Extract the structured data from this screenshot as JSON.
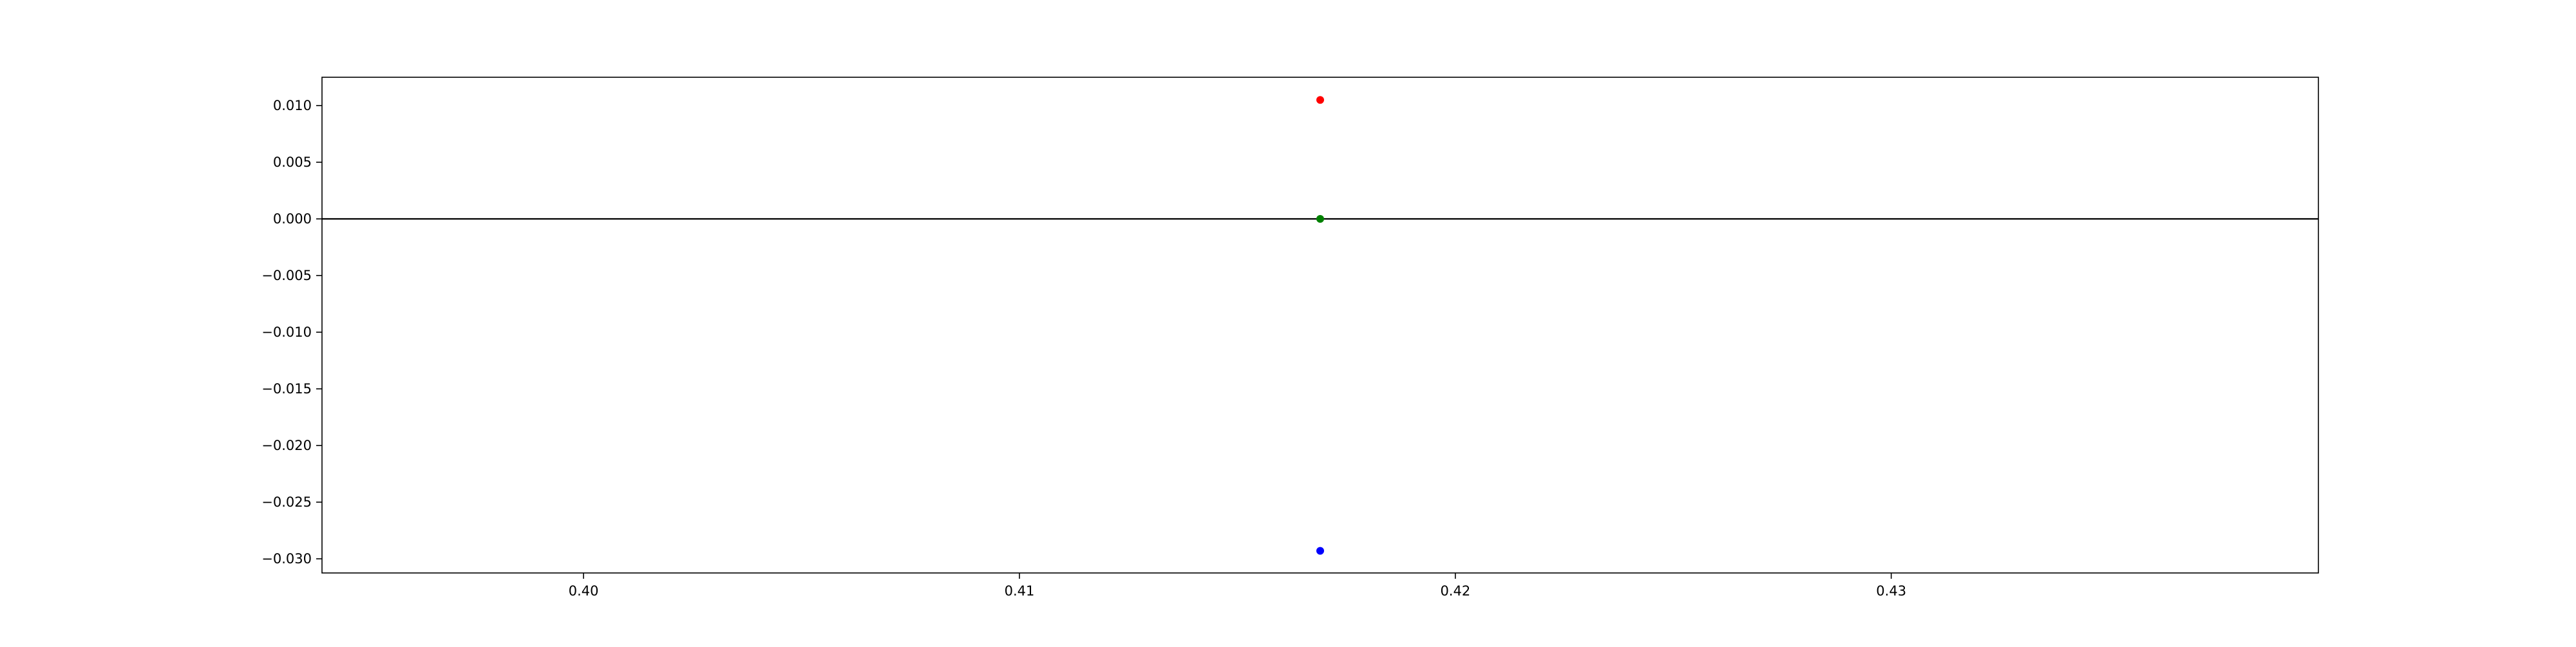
{
  "chart_data": {
    "type": "scatter",
    "title": "",
    "xlabel": "",
    "ylabel": "",
    "xlim": [
      0.394,
      0.4398
    ],
    "ylim": [
      -0.03125,
      0.0125
    ],
    "grid": false,
    "x_ticks": [
      {
        "value": 0.4,
        "label": "0.40"
      },
      {
        "value": 0.41,
        "label": "0.41"
      },
      {
        "value": 0.42,
        "label": "0.42"
      },
      {
        "value": 0.43,
        "label": "0.43"
      }
    ],
    "y_ticks": [
      {
        "value": 0.01,
        "label": "0.010"
      },
      {
        "value": 0.005,
        "label": "0.005"
      },
      {
        "value": 0.0,
        "label": "0.000"
      },
      {
        "value": -0.005,
        "label": "−0.005"
      },
      {
        "value": -0.01,
        "label": "−0.010"
      },
      {
        "value": -0.015,
        "label": "−0.015"
      },
      {
        "value": -0.02,
        "label": "−0.020"
      },
      {
        "value": -0.025,
        "label": "−0.025"
      },
      {
        "value": -0.03,
        "label": "−0.030"
      }
    ],
    "hlines": [
      {
        "y": 0.0,
        "color": "#000000"
      }
    ],
    "series": [
      {
        "color": "#ff0000",
        "points": [
          {
            "x": 0.4169,
            "y": 0.0105
          }
        ]
      },
      {
        "color": "#008000",
        "points": [
          {
            "x": 0.4169,
            "y": 0.0
          }
        ]
      },
      {
        "color": "#0000ff",
        "points": [
          {
            "x": 0.4169,
            "y": -0.0293
          }
        ]
      }
    ]
  }
}
